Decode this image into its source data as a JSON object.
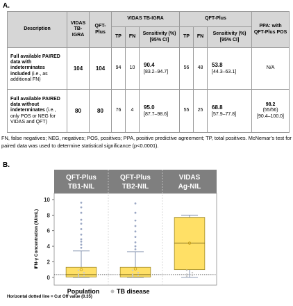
{
  "panel_a_label": "A.",
  "panel_b_label": "B.",
  "table": {
    "headers": {
      "description": "Description",
      "vidas_count": "VIDAS TB-IGRA",
      "qft_count": "QFT-Plus",
      "vidas_group": "VIDAS TB-IGRA",
      "qft_group": "QFT-Plus",
      "ppa": "PPA: with QFT-Plus POS",
      "tp": "TP",
      "fn": "FN",
      "sensitivity": "Sensitivity (%) [95% CI]"
    },
    "rows": [
      {
        "description_bold": "Full available PAIRED data with indeterminates included",
        "description_note": " (i.e., as additional FN)",
        "vidas_n": "104",
        "qft_n": "104",
        "vidas_tp": "94",
        "vidas_fn": "10",
        "vidas_sens": "90.4",
        "vidas_ci": "[83.2–94.7]",
        "qft_tp": "56",
        "qft_fn": "48",
        "qft_sens": "53.8",
        "qft_ci": "[44.3–63.1]",
        "ppa": "N/A",
        "ppa_detail": "",
        "ppa_ci": ""
      },
      {
        "description_bold": "Full available PAIRED data without indeterminates",
        "description_note": " (i.e., only POS or NEG for VIDAS and QFT)",
        "vidas_n": "80",
        "qft_n": "80",
        "vidas_tp": "76",
        "vidas_fn": "4",
        "vidas_sens": "95.0",
        "vidas_ci": "[87.7–98.6]",
        "qft_tp": "55",
        "qft_fn": "25",
        "qft_sens": "68.8",
        "qft_ci": "[57.9–77.8]",
        "ppa": "98.2",
        "ppa_detail": "(55/56)",
        "ppa_ci": "[90.4–100.0]"
      }
    ]
  },
  "footnote": "FN, false negatives; NEG, negatives; POS, positives; PPA, positive predictive agreement; TP, total positives. McNemar’s test for paired data was used to determine statistical significance (p<0.0001).",
  "cutoff_note": "Horizontal dotted line = Cut Off value (0.35)",
  "colors": {
    "header_bg": "#7f7f7f",
    "box_fill": "#ffe066",
    "box_edge": "#a08a2a",
    "outlier": "#9aa7c4",
    "mean_marker": "#c8a018",
    "cutoff": "#404040"
  },
  "chart_data": {
    "type": "box",
    "ylabel": "IFN-γ Concentration (IU/mL)",
    "ylim": [
      -1,
      10.8
    ],
    "yticks": [
      0,
      2,
      4,
      6,
      8,
      10
    ],
    "cutoff": 0.35,
    "categories": [
      "QFT-Plus TB1-NIL",
      "QFT-Plus TB2-NIL",
      "VIDAS Ag-NIL"
    ],
    "legend": [
      "Population",
      "TB disease"
    ],
    "boxes": [
      {
        "label_line1": "QFT-Plus",
        "label_line2": "TB1-NIL",
        "whisker_low": 0,
        "q1": 0.05,
        "median": 0.35,
        "q3": 1.3,
        "whisker_high": 3.4,
        "mean": 1.0,
        "outliers": [
          3.8,
          4.2,
          4.6,
          4.9,
          5.5,
          6.2,
          6.9,
          7.4,
          8.3,
          9.0,
          9.6
        ]
      },
      {
        "label_line1": "QFT-Plus",
        "label_line2": "TB2-NIL",
        "whisker_low": 0,
        "q1": 0.05,
        "median": 0.35,
        "q3": 1.3,
        "whisker_high": 3.3,
        "mean": 1.1,
        "outliers": [
          3.6,
          4.0,
          4.5,
          5.2,
          5.9,
          6.6,
          7.3,
          8.3,
          9.5
        ]
      },
      {
        "label_line1": "VIDAS",
        "label_line2": "Ag-NIL",
        "whisker_low": 0,
        "q1": 1.0,
        "median": 4.4,
        "q3": 7.7,
        "whisker_high": 8.0,
        "mean": 4.4,
        "outliers": []
      }
    ]
  }
}
